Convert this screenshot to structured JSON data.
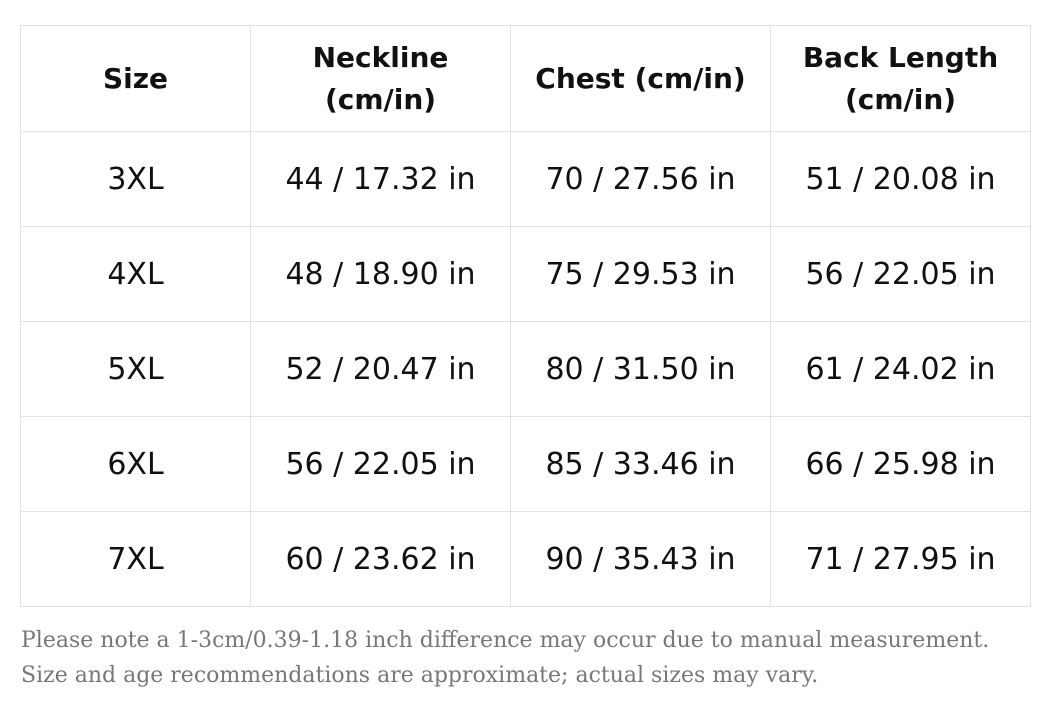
{
  "table": {
    "headers": [
      "Size",
      "Neckline (cm/in)",
      "Chest (cm/in)",
      "Back Length (cm/in)"
    ],
    "rows": [
      [
        "3XL",
        "44 / 17.32 in",
        "70 / 27.56 in",
        "51 / 20.08 in"
      ],
      [
        "4XL",
        "48 / 18.90 in",
        "75 / 29.53 in",
        "56 / 22.05 in"
      ],
      [
        "5XL",
        "52 / 20.47 in",
        "80 / 31.50 in",
        "61 / 24.02 in"
      ],
      [
        "6XL",
        "56 / 22.05 in",
        "85 / 33.46 in",
        "66 / 25.98 in"
      ],
      [
        "7XL",
        "60 / 23.62 in",
        "90 / 35.43 in",
        "71 / 27.95 in"
      ]
    ]
  },
  "note": {
    "line1": "Please note a 1-3cm/0.39-1.18 inch difference may occur due to manual measurement.",
    "line2": "Size and age recommendations are approximate; actual sizes may vary."
  },
  "colors": {
    "text": "#111111",
    "note_text": "#777777",
    "border": "#e2e2e2",
    "background": "#ffffff"
  }
}
